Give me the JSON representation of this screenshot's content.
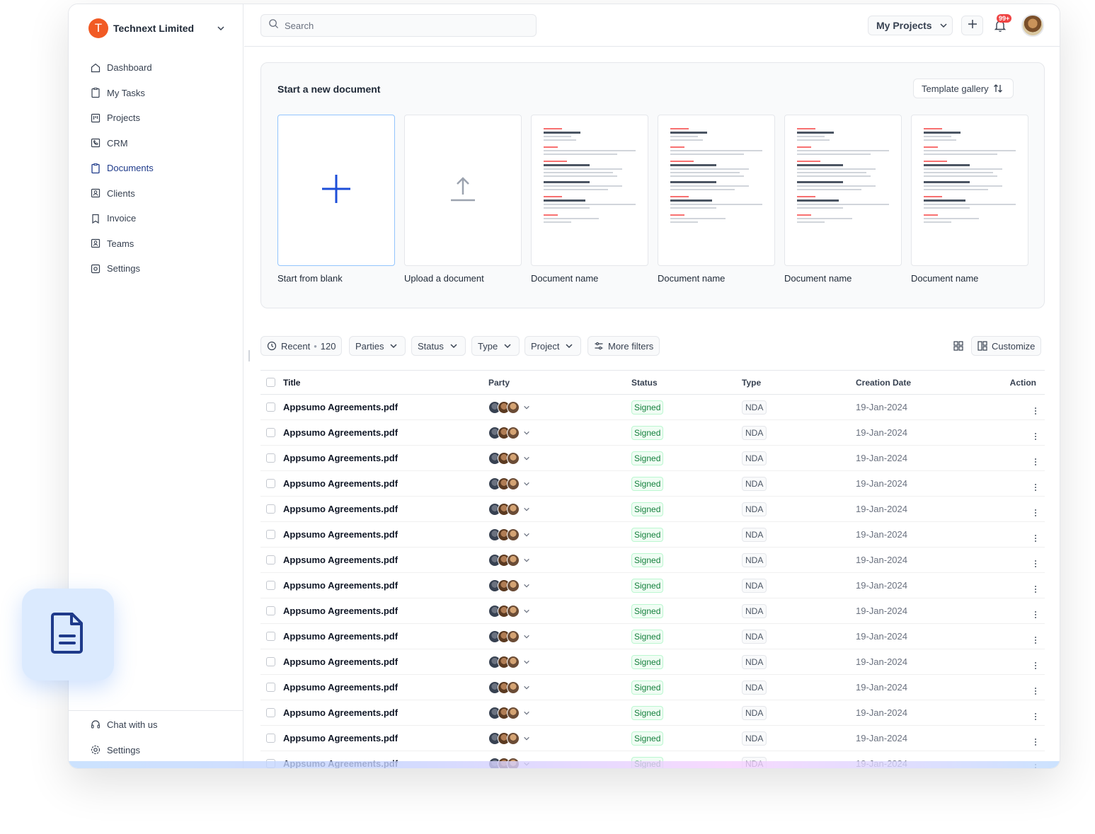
{
  "org": {
    "name": "Technext Limited",
    "initial": "T",
    "color": "#f15a24"
  },
  "nav": [
    {
      "label": "Dashboard",
      "icon": "home-icon"
    },
    {
      "label": "My Tasks",
      "icon": "clipboard-icon"
    },
    {
      "label": "Projects",
      "icon": "kanban-icon"
    },
    {
      "label": "CRM",
      "icon": "phone-icon"
    },
    {
      "label": "Documents",
      "icon": "document-icon",
      "active": true
    },
    {
      "label": "Clients",
      "icon": "contact-icon"
    },
    {
      "label": "Invoice",
      "icon": "bookmark-icon"
    },
    {
      "label": "Teams",
      "icon": "team-icon"
    },
    {
      "label": "Settings",
      "icon": "settings-icon"
    }
  ],
  "side_bottom": [
    {
      "label": "Chat with us",
      "icon": "headset-icon"
    },
    {
      "label": "Settings",
      "icon": "gear-icon"
    }
  ],
  "topbar": {
    "search_placeholder": "Search",
    "projects_label": "My Projects",
    "notification_badge": "99+"
  },
  "new_document": {
    "title": "Start a new document",
    "template_button": "Template gallery",
    "cards": [
      {
        "caption": "Start from blank",
        "kind": "blank"
      },
      {
        "caption": "Upload a document",
        "kind": "upload"
      },
      {
        "caption": "Document name",
        "kind": "template"
      },
      {
        "caption": "Document name",
        "kind": "template"
      },
      {
        "caption": "Document name",
        "kind": "template"
      },
      {
        "caption": "Document name",
        "kind": "template"
      }
    ]
  },
  "filters": {
    "recent_label": "Recent",
    "recent_count": "120",
    "parties": "Parties",
    "status": "Status",
    "type": "Type",
    "project": "Project",
    "more_filters": "More filters",
    "customize": "Customize"
  },
  "table": {
    "headers": {
      "title": "Title",
      "party": "Party",
      "status": "Status",
      "type": "Type",
      "date": "Creation Date",
      "action": "Action"
    },
    "rows": [
      {
        "title": "Appsumo Agreements.pdf",
        "status": "Signed",
        "type": "NDA",
        "date": "19-Jan-2024"
      },
      {
        "title": "Appsumo Agreements.pdf",
        "status": "Signed",
        "type": "NDA",
        "date": "19-Jan-2024"
      },
      {
        "title": "Appsumo Agreements.pdf",
        "status": "Signed",
        "type": "NDA",
        "date": "19-Jan-2024"
      },
      {
        "title": "Appsumo Agreements.pdf",
        "status": "Signed",
        "type": "NDA",
        "date": "19-Jan-2024"
      },
      {
        "title": "Appsumo Agreements.pdf",
        "status": "Signed",
        "type": "NDA",
        "date": "19-Jan-2024"
      },
      {
        "title": "Appsumo Agreements.pdf",
        "status": "Signed",
        "type": "NDA",
        "date": "19-Jan-2024"
      },
      {
        "title": "Appsumo Agreements.pdf",
        "status": "Signed",
        "type": "NDA",
        "date": "19-Jan-2024"
      },
      {
        "title": "Appsumo Agreements.pdf",
        "status": "Signed",
        "type": "NDA",
        "date": "19-Jan-2024"
      },
      {
        "title": "Appsumo Agreements.pdf",
        "status": "Signed",
        "type": "NDA",
        "date": "19-Jan-2024"
      },
      {
        "title": "Appsumo Agreements.pdf",
        "status": "Signed",
        "type": "NDA",
        "date": "19-Jan-2024"
      },
      {
        "title": "Appsumo Agreements.pdf",
        "status": "Signed",
        "type": "NDA",
        "date": "19-Jan-2024"
      },
      {
        "title": "Appsumo Agreements.pdf",
        "status": "Signed",
        "type": "NDA",
        "date": "19-Jan-2024"
      },
      {
        "title": "Appsumo Agreements.pdf",
        "status": "Signed",
        "type": "NDA",
        "date": "19-Jan-2024"
      },
      {
        "title": "Appsumo Agreements.pdf",
        "status": "Signed",
        "type": "NDA",
        "date": "19-Jan-2024"
      },
      {
        "title": "Appsumo Agreements.pdf",
        "status": "Signed",
        "type": "NDA",
        "date": "19-Jan-2024"
      }
    ]
  },
  "colors": {
    "accent": "#1e3a8a",
    "signed_text": "#15803d",
    "brand_orange": "#f15a24",
    "badge_red": "#ef4444"
  }
}
